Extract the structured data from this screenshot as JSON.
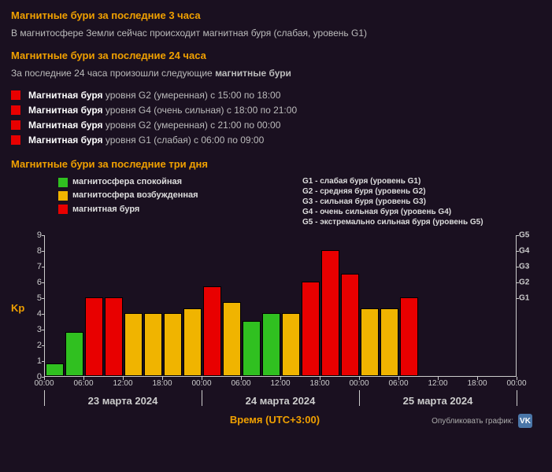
{
  "colors": {
    "red": "#e80000",
    "yellow": "#f0b400",
    "green": "#30c020",
    "accent": "#f0a000",
    "bg": "#1a1020",
    "text": "#cccccc"
  },
  "section3h": {
    "title": "Магнитные бури за последние 3 часа",
    "status": "В магнитосфере Земли сейчас происходит магнитная буря (слабая, уровень G1)"
  },
  "section24h": {
    "title": "Магнитные бури за последние 24 часа",
    "intro_prefix": "За последние 24 часа произошли следующие ",
    "intro_bold": "магнитные бури",
    "items": [
      {
        "color": "#e80000",
        "bold": "Магнитная буря",
        "rest": " уровня G2 (умеренная) с 15:00 по 18:00"
      },
      {
        "color": "#e80000",
        "bold": "Магнитная буря",
        "rest": " уровня G4 (очень сильная) с 18:00 по 21:00"
      },
      {
        "color": "#e80000",
        "bold": "Магнитная буря",
        "rest": " уровня G2 (умеренная) с 21:00 по 00:00"
      },
      {
        "color": "#e80000",
        "bold": "Магнитная буря",
        "rest": " уровня G1 (слабая) с 06:00 по 09:00"
      }
    ]
  },
  "section3d": {
    "title": "Магнитные бури за последние три дня"
  },
  "legend_left": [
    {
      "color": "#30c020",
      "label": "магнитосфера спокойная"
    },
    {
      "color": "#f0b400",
      "label": "магнитосфера возбужденная"
    },
    {
      "color": "#e80000",
      "label": "магнитная буря"
    }
  ],
  "legend_right": [
    "G1 - слабая буря (уровень G1)",
    "G2 - средняя буря (уровень G2)",
    "G3 - сильная буря (уровень G3)",
    "G4 - очень сильная буря (уровень G4)",
    "G5 - экстремально сильная буря (уровень G5)"
  ],
  "chart": {
    "ylabel": "Kp",
    "ylim": [
      0,
      9
    ],
    "yticks": [
      0,
      1,
      2,
      3,
      4,
      5,
      6,
      7,
      8,
      9
    ],
    "right_ticks": [
      {
        "v": 5,
        "label": "G1"
      },
      {
        "v": 6,
        "label": "G2"
      },
      {
        "v": 7,
        "label": "G3"
      },
      {
        "v": 8,
        "label": "G4"
      },
      {
        "v": 9,
        "label": "G5"
      }
    ],
    "n_slots": 24,
    "bar_gap": 1,
    "bars": [
      {
        "i": 0,
        "v": 0.8,
        "color": "#30c020"
      },
      {
        "i": 1,
        "v": 2.8,
        "color": "#30c020"
      },
      {
        "i": 2,
        "v": 5.0,
        "color": "#e80000"
      },
      {
        "i": 3,
        "v": 5.0,
        "color": "#e80000"
      },
      {
        "i": 4,
        "v": 4.0,
        "color": "#f0b400"
      },
      {
        "i": 5,
        "v": 4.0,
        "color": "#f0b400"
      },
      {
        "i": 6,
        "v": 4.0,
        "color": "#f0b400"
      },
      {
        "i": 7,
        "v": 4.3,
        "color": "#f0b400"
      },
      {
        "i": 8,
        "v": 5.7,
        "color": "#e80000"
      },
      {
        "i": 9,
        "v": 4.7,
        "color": "#f0b400"
      },
      {
        "i": 10,
        "v": 3.5,
        "color": "#30c020"
      },
      {
        "i": 11,
        "v": 4.0,
        "color": "#30c020"
      },
      {
        "i": 12,
        "v": 4.0,
        "color": "#f0b400"
      },
      {
        "i": 13,
        "v": 6.0,
        "color": "#e80000"
      },
      {
        "i": 14,
        "v": 8.0,
        "color": "#e80000"
      },
      {
        "i": 15,
        "v": 6.5,
        "color": "#e80000"
      },
      {
        "i": 16,
        "v": 4.3,
        "color": "#f0b400"
      },
      {
        "i": 17,
        "v": 4.3,
        "color": "#f0b400"
      },
      {
        "i": 18,
        "v": 5.0,
        "color": "#e80000"
      }
    ],
    "xticks": [
      {
        "pos": 0,
        "label": "00:00"
      },
      {
        "pos": 2,
        "label": "06:00"
      },
      {
        "pos": 4,
        "label": "12:00"
      },
      {
        "pos": 6,
        "label": "18:00"
      },
      {
        "pos": 8,
        "label": "00:00"
      },
      {
        "pos": 10,
        "label": "06:00"
      },
      {
        "pos": 12,
        "label": "12:00"
      },
      {
        "pos": 14,
        "label": "18:00"
      },
      {
        "pos": 16,
        "label": "00:00"
      },
      {
        "pos": 18,
        "label": "06:00"
      },
      {
        "pos": 20,
        "label": "12:00"
      },
      {
        "pos": 22,
        "label": "18:00"
      },
      {
        "pos": 24,
        "label": "00:00"
      }
    ],
    "day_seps": [
      0,
      8,
      16,
      24
    ],
    "days": [
      {
        "from": 0,
        "to": 8,
        "label": "23 марта 2024"
      },
      {
        "from": 8,
        "to": 16,
        "label": "24 марта 2024"
      },
      {
        "from": 16,
        "to": 24,
        "label": "25 марта 2024"
      }
    ],
    "xaxis_title": "Время (UTC+3:00)",
    "publish_label": "Опубликовать график:",
    "vk_label": "VK"
  }
}
